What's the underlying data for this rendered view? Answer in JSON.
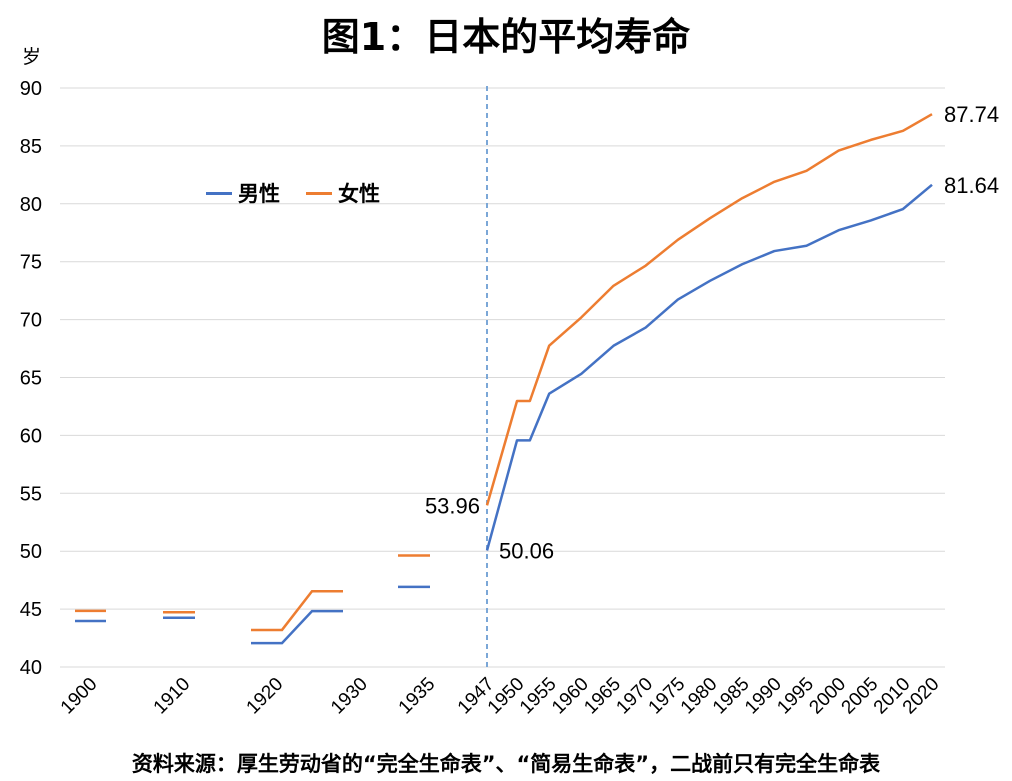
{
  "title": "图1：日本的平均寿命",
  "source_note": "资料来源：厚生劳动省的“完全生命表”、“简易生命表”，二战前只有完全生命表",
  "colors": {
    "male": "#4472C4",
    "female": "#ED7D31",
    "divider": "#7BA7D7",
    "grid": "#D9D9D9"
  },
  "chart_data": {
    "type": "line",
    "title": "图1：日本的平均寿命",
    "ylabel": "岁",
    "ylim": [
      40,
      90
    ],
    "yticks": [
      "40",
      "45",
      "50",
      "55",
      "60",
      "65",
      "70",
      "75",
      "80",
      "85",
      "90"
    ],
    "x_tick_labels": [
      "1900",
      "1910",
      "1920",
      "1930",
      "1935",
      "1947",
      "1950",
      "1955",
      "1960",
      "1965",
      "1970",
      "1975",
      "1980",
      "1985",
      "1990",
      "1995",
      "2000",
      "2005",
      "2010",
      "2020"
    ],
    "legend_position": "upper-left",
    "divider_label": "1947",
    "prewar": {
      "male": [
        {
          "period": "1900",
          "value": 43.97
        },
        {
          "period": "1910",
          "value": 44.25
        },
        {
          "period": "1920-1930",
          "values": [
            42.06,
            42.06,
            44.82,
            44.82
          ]
        },
        {
          "period": "1935",
          "value": 46.92
        }
      ],
      "female": [
        {
          "period": "1900",
          "value": 44.85
        },
        {
          "period": "1910",
          "value": 44.73
        },
        {
          "period": "1920-1930",
          "values": [
            43.2,
            43.2,
            46.54,
            46.54
          ]
        },
        {
          "period": "1935",
          "value": 49.63
        }
      ]
    },
    "series": [
      {
        "name": "男性",
        "x": [
          "1947",
          "1950",
          "1952",
          "1955",
          "1960",
          "1965",
          "1970",
          "1975",
          "1980",
          "1985",
          "1990",
          "1995",
          "2000",
          "2005",
          "2010",
          "2020"
        ],
        "values": [
          50.06,
          59.57,
          59.57,
          63.6,
          65.32,
          67.74,
          69.31,
          71.73,
          73.35,
          74.78,
          75.92,
          76.38,
          77.72,
          78.56,
          79.55,
          81.64
        ]
      },
      {
        "name": "女性",
        "x": [
          "1947",
          "1950",
          "1952",
          "1955",
          "1960",
          "1965",
          "1970",
          "1975",
          "1980",
          "1985",
          "1990",
          "1995",
          "2000",
          "2005",
          "2010",
          "2020"
        ],
        "values": [
          53.96,
          62.97,
          62.97,
          67.75,
          70.19,
          72.92,
          74.66,
          76.89,
          78.76,
          80.48,
          81.9,
          82.85,
          84.6,
          85.52,
          86.3,
          87.74
        ]
      }
    ],
    "data_labels": {
      "male_start": "50.06",
      "female_start": "53.96",
      "male_end": "81.64",
      "female_end": "87.74"
    }
  }
}
